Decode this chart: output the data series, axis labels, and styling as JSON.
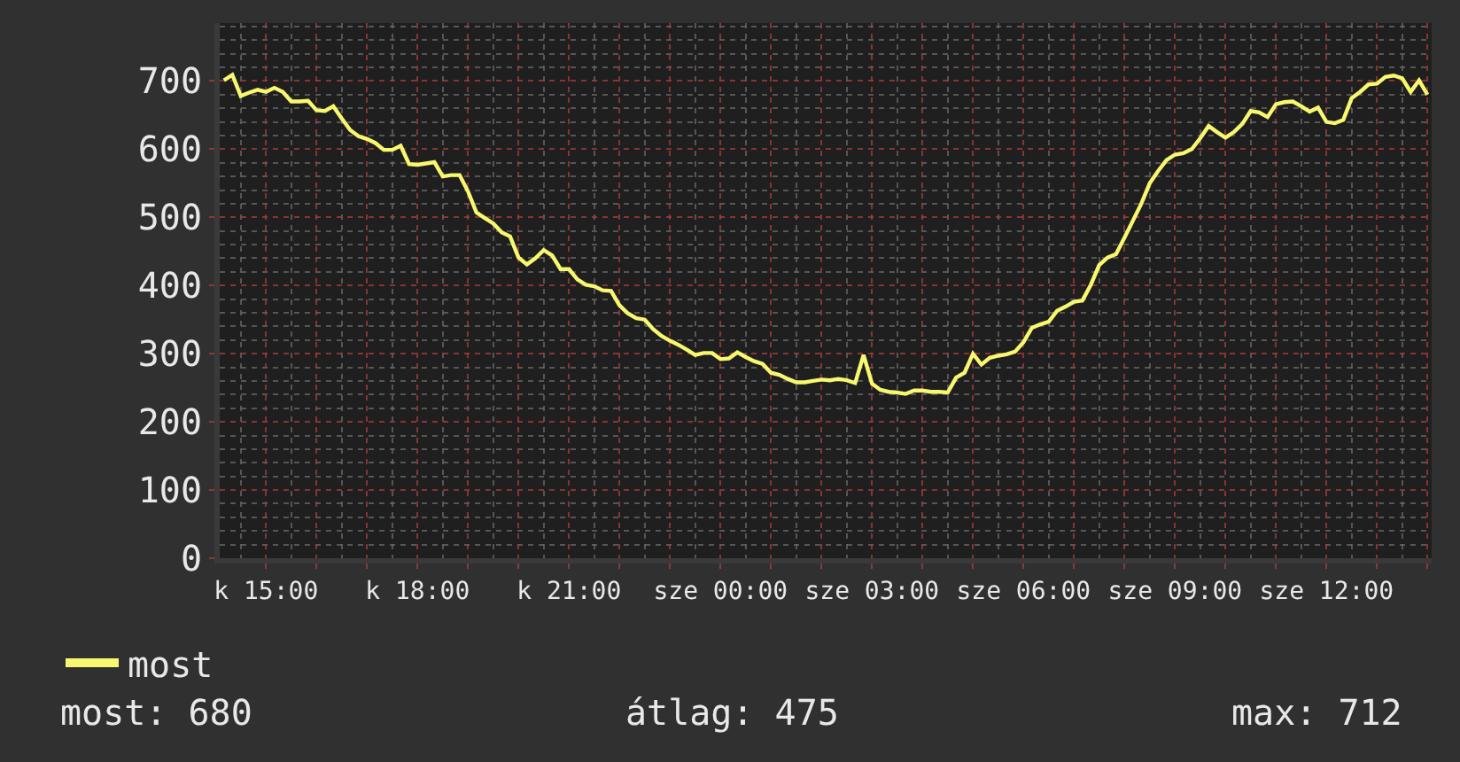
{
  "chart_data": {
    "type": "line",
    "categories": [
      null,
      null,
      null,
      null,
      null,
      "k 15:00",
      null,
      null,
      null,
      null,
      null,
      null,
      null,
      null,
      null,
      null,
      null,
      null,
      null,
      null,
      null,
      null,
      null,
      "k 18:00",
      null,
      null,
      null,
      null,
      null,
      null,
      null,
      null,
      null,
      null,
      null,
      null,
      null,
      null,
      null,
      null,
      null,
      "k 21:00",
      null,
      null,
      null,
      null,
      null,
      null,
      null,
      null,
      null,
      null,
      null,
      null,
      null,
      null,
      null,
      null,
      null,
      "sze 00:00",
      null,
      null,
      null,
      null,
      null,
      null,
      null,
      null,
      null,
      null,
      null,
      null,
      null,
      null,
      null,
      null,
      null,
      "sze 03:00",
      null,
      null,
      null,
      null,
      null,
      null,
      null,
      null,
      null,
      null,
      null,
      null,
      null,
      null,
      null,
      null,
      null,
      "sze 06:00",
      null,
      null,
      null,
      null,
      null,
      null,
      null,
      null,
      null,
      null,
      null,
      null,
      null,
      null,
      null,
      null,
      null,
      "sze 09:00",
      null,
      null,
      null,
      null,
      null,
      null,
      null,
      null,
      null,
      null,
      null,
      null,
      null,
      null,
      null,
      null,
      null,
      "sze 12:00",
      null,
      null,
      null,
      null,
      null,
      null,
      null,
      null,
      null,
      null,
      null,
      null
    ],
    "series": [
      {
        "name": "most",
        "color": "#f8f870",
        "values": [
          701,
          709,
          678,
          683,
          687,
          684,
          690,
          684,
          670,
          670,
          671,
          657,
          656,
          663,
          645,
          628,
          619,
          615,
          609,
          599,
          599,
          605,
          578,
          577,
          579,
          581,
          560,
          562,
          562,
          538,
          507,
          499,
          491,
          478,
          472,
          441,
          431,
          440,
          452,
          444,
          424,
          424,
          409,
          401,
          399,
          393,
          392,
          371,
          359,
          352,
          350,
          336,
          326,
          319,
          313,
          306,
          298,
          301,
          301,
          292,
          293,
          302,
          295,
          289,
          285,
          272,
          269,
          263,
          258,
          258,
          260,
          262,
          261,
          263,
          261,
          257,
          298,
          256,
          247,
          244,
          243,
          241,
          246,
          246,
          244,
          244,
          243,
          265,
          272,
          300,
          284,
          294,
          297,
          299,
          303,
          317,
          338,
          343,
          347,
          363,
          369,
          376,
          378,
          401,
          430,
          441,
          446,
          470,
          495,
          520,
          550,
          568,
          584,
          592,
          594,
          600,
          616,
          634,
          625,
          617,
          625,
          637,
          656,
          654,
          647,
          666,
          669,
          670,
          663,
          655,
          661,
          640,
          638,
          643,
          675,
          684,
          695,
          696,
          706,
          708,
          704,
          684,
          701,
          680
        ]
      }
    ],
    "ylim": [
      0,
      785
    ],
    "yticks": [
      0,
      100,
      200,
      300,
      400,
      500,
      600,
      700
    ],
    "grid": true,
    "legend": "bottom left",
    "annotations": [
      "most: 680",
      "átlag: 475",
      "max: 712"
    ]
  }
}
